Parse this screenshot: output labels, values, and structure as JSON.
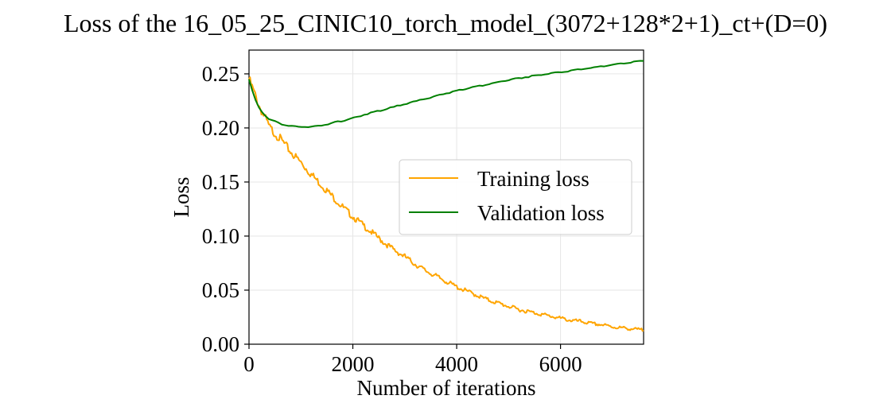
{
  "chart_data": {
    "type": "line",
    "title": "Loss of the 16_05_25_CINIC10_torch_model_(3072+128*2+1)_ct+(D=0)",
    "xlabel": "Number of iterations",
    "ylabel": "Loss",
    "xlim": [
      0,
      7600
    ],
    "ylim": [
      0,
      0.272
    ],
    "xticks": [
      0,
      2000,
      4000,
      6000
    ],
    "xtick_labels": [
      "0",
      "2000",
      "4000",
      "6000"
    ],
    "yticks": [
      0,
      0.05,
      0.1,
      0.15,
      0.2,
      0.25
    ],
    "ytick_labels": [
      "0.00",
      "0.05",
      "0.10",
      "0.15",
      "0.20",
      "0.25"
    ],
    "grid": true,
    "legend_position": "center-right",
    "series": [
      {
        "name": "Training loss",
        "color": "#FFA500",
        "x": [
          0,
          200,
          400,
          600,
          800,
          1000,
          1200,
          1400,
          1600,
          1800,
          2000,
          2200,
          2400,
          2600,
          2800,
          3000,
          3200,
          3400,
          3600,
          3800,
          4000,
          4200,
          4400,
          4600,
          4800,
          5000,
          5200,
          5400,
          5600,
          5800,
          6000,
          6200,
          6400,
          6600,
          6800,
          7000,
          7200,
          7400,
          7600
        ],
        "y": [
          0.245,
          0.22,
          0.2,
          0.19,
          0.178,
          0.168,
          0.157,
          0.147,
          0.137,
          0.127,
          0.118,
          0.11,
          0.102,
          0.094,
          0.087,
          0.081,
          0.074,
          0.068,
          0.063,
          0.058,
          0.053,
          0.049,
          0.045,
          0.041,
          0.038,
          0.035,
          0.032,
          0.03,
          0.028,
          0.026,
          0.024,
          0.022,
          0.021,
          0.019,
          0.018,
          0.016,
          0.015,
          0.014,
          0.013
        ]
      },
      {
        "name": "Validation loss",
        "color": "#008000",
        "x": [
          0,
          100,
          200,
          300,
          400,
          600,
          800,
          1000,
          1200,
          1400,
          1600,
          1800,
          2000,
          2200,
          2400,
          2600,
          2800,
          3000,
          3200,
          3400,
          3600,
          3800,
          4000,
          4200,
          4400,
          4600,
          4800,
          5000,
          5200,
          5400,
          5600,
          5800,
          6000,
          6200,
          6400,
          6600,
          6800,
          7000,
          7200,
          7400,
          7600
        ],
        "y": [
          0.245,
          0.228,
          0.218,
          0.212,
          0.208,
          0.204,
          0.2015,
          0.201,
          0.2012,
          0.2025,
          0.2045,
          0.2065,
          0.209,
          0.212,
          0.2145,
          0.217,
          0.2195,
          0.222,
          0.2245,
          0.227,
          0.2295,
          0.232,
          0.2345,
          0.2365,
          0.2385,
          0.2405,
          0.2425,
          0.2445,
          0.246,
          0.2475,
          0.249,
          0.2505,
          0.2515,
          0.2528,
          0.2545,
          0.2558,
          0.257,
          0.2585,
          0.2598,
          0.261,
          0.2625
        ]
      }
    ]
  }
}
